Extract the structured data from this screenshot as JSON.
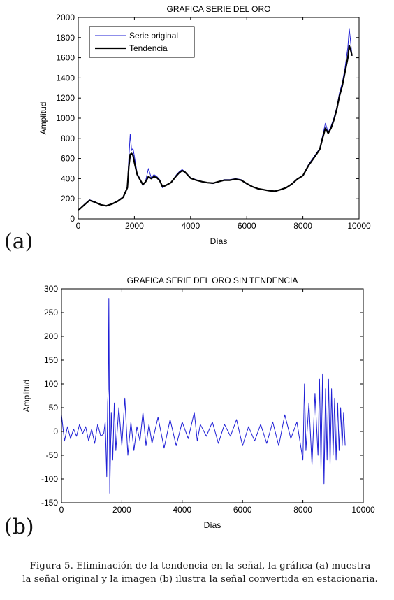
{
  "chart_data": [
    {
      "panel": "(a)",
      "type": "line",
      "title": "GRAFICA SERIE DEL ORO",
      "xlabel": "Días",
      "ylabel": "Amplitud",
      "xlim": [
        0,
        10000
      ],
      "ylim": [
        0,
        2000
      ],
      "xticks": [
        0,
        2000,
        4000,
        6000,
        8000,
        10000
      ],
      "yticks": [
        0,
        200,
        400,
        600,
        800,
        1000,
        1200,
        1400,
        1600,
        1800,
        2000
      ],
      "grid": false,
      "legend": "top-left",
      "series": [
        {
          "name": "Serie original",
          "color": "#1f1fd6",
          "x": [
            0,
            200,
            400,
            600,
            800,
            1000,
            1200,
            1400,
            1600,
            1750,
            1800,
            1850,
            1900,
            1950,
            2000,
            2100,
            2200,
            2300,
            2400,
            2500,
            2600,
            2700,
            2800,
            2900,
            3000,
            3100,
            3200,
            3300,
            3400,
            3500,
            3600,
            3700,
            3800,
            3900,
            4000,
            4200,
            4400,
            4600,
            4800,
            5000,
            5200,
            5400,
            5600,
            5800,
            6000,
            6200,
            6400,
            6600,
            6800,
            7000,
            7200,
            7400,
            7600,
            7800,
            8000,
            8200,
            8400,
            8600,
            8700,
            8800,
            8900,
            9000,
            9100,
            9200,
            9300,
            9400,
            9500,
            9600,
            9650,
            9700,
            9750
          ],
          "y": [
            80,
            140,
            190,
            170,
            140,
            130,
            150,
            180,
            220,
            320,
            600,
            840,
            680,
            700,
            620,
            450,
            400,
            330,
            380,
            500,
            410,
            440,
            420,
            390,
            310,
            330,
            350,
            360,
            400,
            440,
            470,
            490,
            470,
            440,
            410,
            390,
            370,
            360,
            350,
            370,
            390,
            390,
            400,
            390,
            350,
            320,
            300,
            290,
            280,
            270,
            290,
            310,
            350,
            400,
            430,
            540,
            620,
            700,
            820,
            950,
            860,
            920,
            1000,
            1100,
            1250,
            1350,
            1500,
            1700,
            1890,
            1760,
            1620
          ]
        },
        {
          "name": "Tendencia",
          "color": "#000000",
          "x": [
            0,
            200,
            400,
            600,
            800,
            1000,
            1200,
            1400,
            1600,
            1750,
            1800,
            1850,
            1900,
            1950,
            2000,
            2100,
            2200,
            2300,
            2400,
            2500,
            2600,
            2700,
            2800,
            2900,
            3000,
            3100,
            3200,
            3300,
            3400,
            3500,
            3600,
            3700,
            3800,
            3900,
            4000,
            4200,
            4400,
            4600,
            4800,
            5000,
            5200,
            5400,
            5600,
            5800,
            6000,
            6200,
            6400,
            6600,
            6800,
            7000,
            7200,
            7400,
            7600,
            7800,
            8000,
            8200,
            8400,
            8600,
            8700,
            8800,
            8900,
            9000,
            9100,
            9200,
            9300,
            9400,
            9500,
            9600,
            9650,
            9700,
            9750
          ],
          "y": [
            85,
            135,
            185,
            165,
            140,
            130,
            148,
            175,
            215,
            310,
            520,
            640,
            650,
            630,
            560,
            440,
            390,
            340,
            370,
            420,
            400,
            420,
            410,
            380,
            320,
            330,
            345,
            360,
            395,
            430,
            460,
            480,
            465,
            435,
            405,
            385,
            370,
            360,
            355,
            370,
            385,
            385,
            395,
            385,
            350,
            320,
            300,
            290,
            280,
            275,
            290,
            310,
            345,
            395,
            430,
            530,
            610,
            690,
            800,
            900,
            850,
            900,
            980,
            1080,
            1220,
            1320,
            1460,
            1600,
            1720,
            1680,
            1620
          ]
        }
      ]
    },
    {
      "panel": "(b)",
      "type": "line",
      "title": "GRAFICA SERIE DEL ORO SIN TENDENCIA",
      "xlabel": "Días",
      "ylabel": "Amplitud",
      "xlim": [
        0,
        10000
      ],
      "ylim": [
        -150,
        300
      ],
      "xticks": [
        0,
        2000,
        4000,
        6000,
        8000,
        10000
      ],
      "yticks": [
        -150,
        -100,
        -50,
        0,
        50,
        100,
        150,
        200,
        250,
        300
      ],
      "grid": false,
      "series": [
        {
          "color": "#1f1fd6",
          "x": [
            0,
            100,
            200,
            300,
            400,
            500,
            600,
            700,
            800,
            900,
            1000,
            1100,
            1200,
            1300,
            1400,
            1450,
            1500,
            1530,
            1550,
            1570,
            1600,
            1650,
            1700,
            1750,
            1800,
            1900,
            2000,
            2100,
            2200,
            2300,
            2400,
            2500,
            2600,
            2700,
            2800,
            2900,
            3000,
            3200,
            3400,
            3600,
            3800,
            4000,
            4200,
            4400,
            4500,
            4600,
            4800,
            5000,
            5200,
            5400,
            5600,
            5800,
            6000,
            6200,
            6400,
            6600,
            6800,
            7000,
            7200,
            7400,
            7600,
            7800,
            8000,
            8050,
            8100,
            8200,
            8300,
            8400,
            8500,
            8550,
            8600,
            8650,
            8700,
            8750,
            8800,
            8850,
            8900,
            8950,
            9000,
            9050,
            9100,
            9150,
            9200,
            9250,
            9300,
            9350,
            9400
          ],
          "y": [
            35,
            -20,
            10,
            -15,
            5,
            -10,
            15,
            -5,
            10,
            -20,
            5,
            -25,
            15,
            -10,
            -5,
            20,
            -95,
            60,
            90,
            280,
            -130,
            40,
            -60,
            60,
            -40,
            50,
            -30,
            70,
            -50,
            20,
            -40,
            10,
            -20,
            40,
            -30,
            15,
            -25,
            30,
            -35,
            25,
            -30,
            20,
            -15,
            40,
            -20,
            15,
            -10,
            20,
            -25,
            15,
            -10,
            25,
            -30,
            10,
            -20,
            15,
            -25,
            20,
            -30,
            35,
            -15,
            20,
            -60,
            100,
            -40,
            60,
            -70,
            80,
            -50,
            110,
            -80,
            120,
            -110,
            90,
            -60,
            110,
            -70,
            90,
            -50,
            70,
            -60,
            60,
            -40,
            50,
            -30,
            40,
            -30
          ]
        }
      ]
    }
  ],
  "panel_labels": [
    "(a)",
    "(b)"
  ],
  "caption": {
    "line1": "Figura 5. Eliminación de la tendencia en la señal, la gráfica (a) muestra",
    "line2": "la señal original y la imagen (b) ilustra la  señal convertida en estacionaria."
  }
}
